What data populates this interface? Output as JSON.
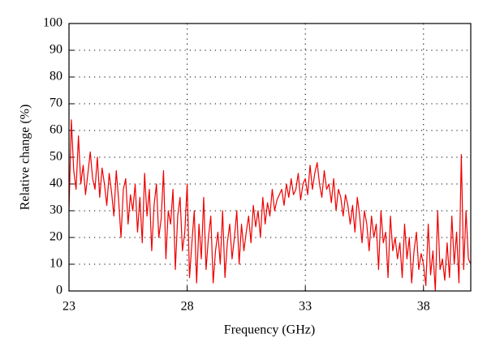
{
  "chart_data": {
    "type": "line",
    "xlabel": "Frequency (GHz)",
    "ylabel": "Relative change (%)",
    "xlim": [
      23,
      40
    ],
    "ylim": [
      0,
      100
    ],
    "xticks": [
      23,
      28,
      33,
      38
    ],
    "yticks": [
      0,
      10,
      20,
      30,
      40,
      50,
      60,
      70,
      80,
      90,
      100
    ],
    "grid": true,
    "series": [
      {
        "color": "#ee0000",
        "x": [
          23.0,
          23.1,
          23.2,
          23.3,
          23.4,
          23.5,
          23.6,
          23.7,
          23.8,
          23.9,
          24.0,
          24.1,
          24.2,
          24.3,
          24.4,
          24.5,
          24.6,
          24.7,
          24.8,
          24.9,
          25.0,
          25.1,
          25.2,
          25.3,
          25.4,
          25.5,
          25.6,
          25.7,
          25.8,
          25.9,
          26.0,
          26.1,
          26.2,
          26.3,
          26.4,
          26.5,
          26.6,
          26.7,
          26.8,
          26.9,
          27.0,
          27.1,
          27.2,
          27.3,
          27.4,
          27.5,
          27.6,
          27.7,
          27.8,
          27.9,
          28.0,
          28.1,
          28.2,
          28.3,
          28.4,
          28.5,
          28.6,
          28.7,
          28.8,
          28.9,
          29.0,
          29.1,
          29.2,
          29.3,
          29.4,
          29.5,
          29.6,
          29.7,
          29.8,
          29.9,
          30.0,
          30.1,
          30.2,
          30.3,
          30.4,
          30.5,
          30.6,
          30.7,
          30.8,
          30.9,
          31.0,
          31.1,
          31.2,
          31.3,
          31.4,
          31.5,
          31.6,
          31.7,
          31.8,
          31.9,
          32.0,
          32.1,
          32.2,
          32.3,
          32.4,
          32.5,
          32.6,
          32.7,
          32.8,
          32.9,
          33.0,
          33.1,
          33.2,
          33.3,
          33.4,
          33.5,
          33.6,
          33.7,
          33.8,
          33.9,
          34.0,
          34.1,
          34.2,
          34.3,
          34.4,
          34.5,
          34.6,
          34.7,
          34.8,
          34.9,
          35.0,
          35.1,
          35.2,
          35.3,
          35.4,
          35.5,
          35.6,
          35.7,
          35.8,
          35.9,
          36.0,
          36.1,
          36.2,
          36.3,
          36.4,
          36.5,
          36.6,
          36.7,
          36.8,
          36.9,
          37.0,
          37.1,
          37.2,
          37.3,
          37.4,
          37.5,
          37.6,
          37.7,
          37.8,
          37.9,
          38.0,
          38.1,
          38.2,
          38.3,
          38.4,
          38.5,
          38.6,
          38.7,
          38.8,
          38.9,
          39.0,
          39.1,
          39.2,
          39.3,
          39.4,
          39.5,
          39.6,
          39.7,
          39.8,
          39.9,
          40.0
        ],
        "values": [
          30,
          64,
          45,
          38,
          58,
          40,
          47,
          36,
          44,
          52,
          42,
          38,
          50,
          35,
          46,
          40,
          32,
          44,
          37,
          28,
          45,
          34,
          20,
          38,
          42,
          25,
          36,
          30,
          40,
          22,
          35,
          18,
          44,
          28,
          38,
          15,
          32,
          40,
          20,
          27,
          45,
          12,
          30,
          25,
          38,
          8,
          28,
          35,
          15,
          22,
          40,
          5,
          18,
          30,
          3,
          25,
          12,
          35,
          8,
          20,
          28,
          3,
          15,
          22,
          10,
          30,
          5,
          18,
          25,
          12,
          20,
          30,
          10,
          25,
          15,
          22,
          28,
          18,
          32,
          24,
          30,
          20,
          35,
          25,
          33,
          28,
          38,
          30,
          34,
          36,
          38,
          32,
          40,
          35,
          42,
          36,
          38,
          44,
          34,
          40,
          42,
          36,
          47,
          38,
          44,
          48,
          40,
          35,
          45,
          38,
          40,
          33,
          42,
          30,
          38,
          35,
          28,
          36,
          32,
          25,
          32,
          22,
          35,
          28,
          18,
          30,
          25,
          15,
          28,
          20,
          25,
          8,
          30,
          18,
          22,
          5,
          28,
          15,
          20,
          12,
          18,
          5,
          25,
          12,
          20,
          3,
          15,
          22,
          8,
          14,
          10,
          2,
          25,
          6,
          15,
          0,
          30,
          8,
          12,
          4,
          18,
          5,
          28,
          10,
          22,
          3,
          51,
          8,
          30,
          12,
          10
        ]
      }
    ]
  }
}
